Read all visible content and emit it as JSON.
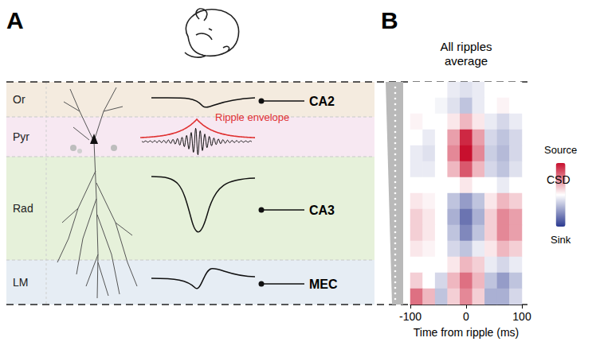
{
  "panel_a": {
    "letter": "A",
    "layers": [
      {
        "label": "Or",
        "color": "#f4ebdf"
      },
      {
        "label": "Pyr",
        "color": "#f7e8f2"
      },
      {
        "label": "Rad",
        "color": "#e6f1da"
      },
      {
        "label": "LM",
        "color": "#e6edf4"
      }
    ],
    "inputs": [
      {
        "label": "CA2",
        "layer": "Or"
      },
      {
        "label": "CA3",
        "layer": "Rad"
      },
      {
        "label": "MEC",
        "layer": "LM"
      }
    ],
    "ripple_label": "Ripple envelope"
  },
  "chart_data": {
    "type": "heatmap",
    "letter": "B",
    "title": "All ripples average",
    "x": [
      -100,
      -75,
      -50,
      -25,
      0,
      25,
      50,
      75,
      100
    ],
    "xlim": [
      -100,
      100
    ],
    "xticks": [
      -100,
      0,
      100
    ],
    "xlabel": "Time from ripple (ms)",
    "tick_labels": "x",
    "cells": [
      [
        0,
        0,
        0,
        -0.1,
        -0.15,
        -0.1,
        0,
        0,
        0
      ],
      [
        0,
        0,
        -0.05,
        -0.15,
        -0.3,
        -0.1,
        0,
        0.05,
        0
      ],
      [
        0.05,
        0,
        0,
        0.1,
        0.3,
        0.1,
        -0.1,
        -0.2,
        -0.1
      ],
      [
        0,
        -0.1,
        0,
        0.4,
        0.9,
        0.4,
        -0.2,
        -0.3,
        -0.2
      ],
      [
        -0.1,
        -0.15,
        0,
        0.5,
        1,
        0.5,
        -0.25,
        -0.35,
        -0.2
      ],
      [
        -0.1,
        -0.1,
        0,
        0.3,
        0.7,
        0.3,
        -0.2,
        -0.3,
        -0.15
      ],
      [
        0,
        0,
        0,
        0,
        0.1,
        0,
        0,
        -0.1,
        0
      ],
      [
        0.1,
        0.05,
        0,
        -0.3,
        -0.5,
        -0.3,
        0.1,
        0.3,
        0.2
      ],
      [
        0.2,
        0.1,
        0,
        -0.4,
        -0.7,
        -0.4,
        0.2,
        0.5,
        0.4
      ],
      [
        0.2,
        0.1,
        0,
        -0.3,
        -0.6,
        -0.3,
        0.2,
        0.5,
        0.4
      ],
      [
        0.1,
        0.05,
        0,
        -0.2,
        -0.3,
        -0.1,
        0.1,
        0.3,
        0.2
      ],
      [
        0,
        0,
        0,
        0.1,
        0.3,
        0.2,
        -0.1,
        -0.2,
        -0.1
      ],
      [
        0.2,
        0,
        -0.2,
        0.3,
        0.6,
        0.3,
        -0.3,
        -0.5,
        -0.3
      ],
      [
        0.6,
        0.3,
        -0.3,
        0.2,
        0.5,
        0.2,
        -0.4,
        -0.4,
        -0.2
      ]
    ],
    "color_range": [
      -1,
      1
    ],
    "colorbar_labels": {
      "top": "Source",
      "middle": "CSD",
      "bottom": "Sink"
    }
  }
}
